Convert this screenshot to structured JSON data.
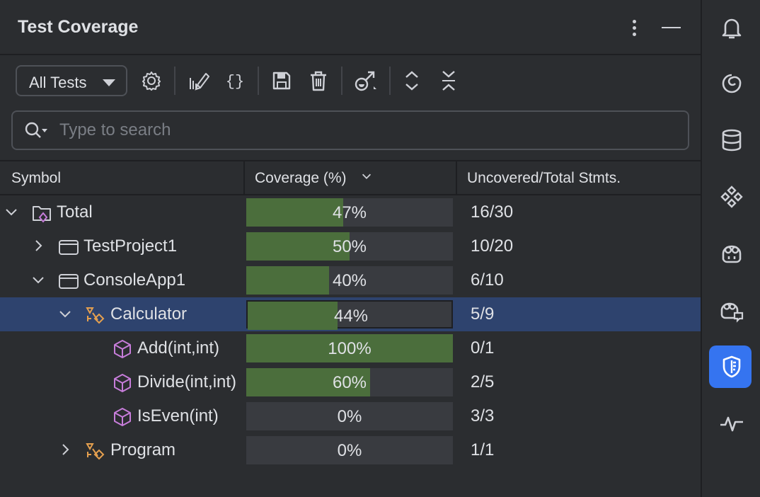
{
  "panel": {
    "title": "Test Coverage"
  },
  "toolbar": {
    "scope_dropdown": "All Tests",
    "icons": [
      "settings-icon",
      "highlight-coverage-icon",
      "braces-icon",
      "save-icon",
      "delete-icon",
      "export-icon",
      "expand-all-icon",
      "collapse-all-icon"
    ]
  },
  "search": {
    "placeholder": "Type to search"
  },
  "columns": {
    "symbol": "Symbol",
    "coverage": "Coverage (%)",
    "stmts": "Uncovered/Total Stmts."
  },
  "rows": [
    {
      "name": "Total",
      "coverage": "47%",
      "fraction": 0.47,
      "stmts": "16/30",
      "level": 0,
      "expander": "expanded",
      "icon": "solution-folder-icon",
      "selected": false
    },
    {
      "name": "TestProject1",
      "coverage": "50%",
      "fraction": 0.5,
      "stmts": "10/20",
      "level": 1,
      "expander": "collapsed",
      "icon": "project-icon",
      "selected": false
    },
    {
      "name": "ConsoleApp1",
      "coverage": "40%",
      "fraction": 0.4,
      "stmts": "6/10",
      "level": 1,
      "expander": "expanded",
      "icon": "project-icon",
      "selected": false
    },
    {
      "name": "Calculator",
      "coverage": "44%",
      "fraction": 0.44,
      "stmts": "5/9",
      "level": 2,
      "expander": "expanded",
      "icon": "class-icon",
      "selected": true
    },
    {
      "name": "Add(int,int)",
      "coverage": "100%",
      "fraction": 1.0,
      "stmts": "0/1",
      "level": 3,
      "expander": "none",
      "icon": "method-icon",
      "selected": false
    },
    {
      "name": "Divide(int,int)",
      "coverage": "60%",
      "fraction": 0.6,
      "stmts": "2/5",
      "level": 3,
      "expander": "none",
      "icon": "method-icon",
      "selected": false
    },
    {
      "name": "IsEven(int)",
      "coverage": "0%",
      "fraction": 0.0,
      "stmts": "3/3",
      "level": 3,
      "expander": "none",
      "icon": "method-icon",
      "selected": false
    },
    {
      "name": "Program",
      "coverage": "0%",
      "fraction": 0.0,
      "stmts": "1/1",
      "level": 2,
      "expander": "collapsed",
      "icon": "class-icon",
      "selected": false
    }
  ],
  "right_strip": {
    "icons": [
      "notifications-icon",
      "ai-assistant-icon",
      "database-icon",
      "plugins-icon",
      "copilot-icon",
      "copilot-chat-icon",
      "coverage-icon",
      "performance-icon"
    ],
    "active": "coverage-icon"
  },
  "colors": {
    "background": "#2b2d30",
    "coverage_fill": "#4b6e3c",
    "coverage_track": "#393b40",
    "selection": "#2e436e",
    "active_tool": "#3574f0",
    "member_icon": "#c77dda",
    "class_icon": "#e5a04f"
  }
}
